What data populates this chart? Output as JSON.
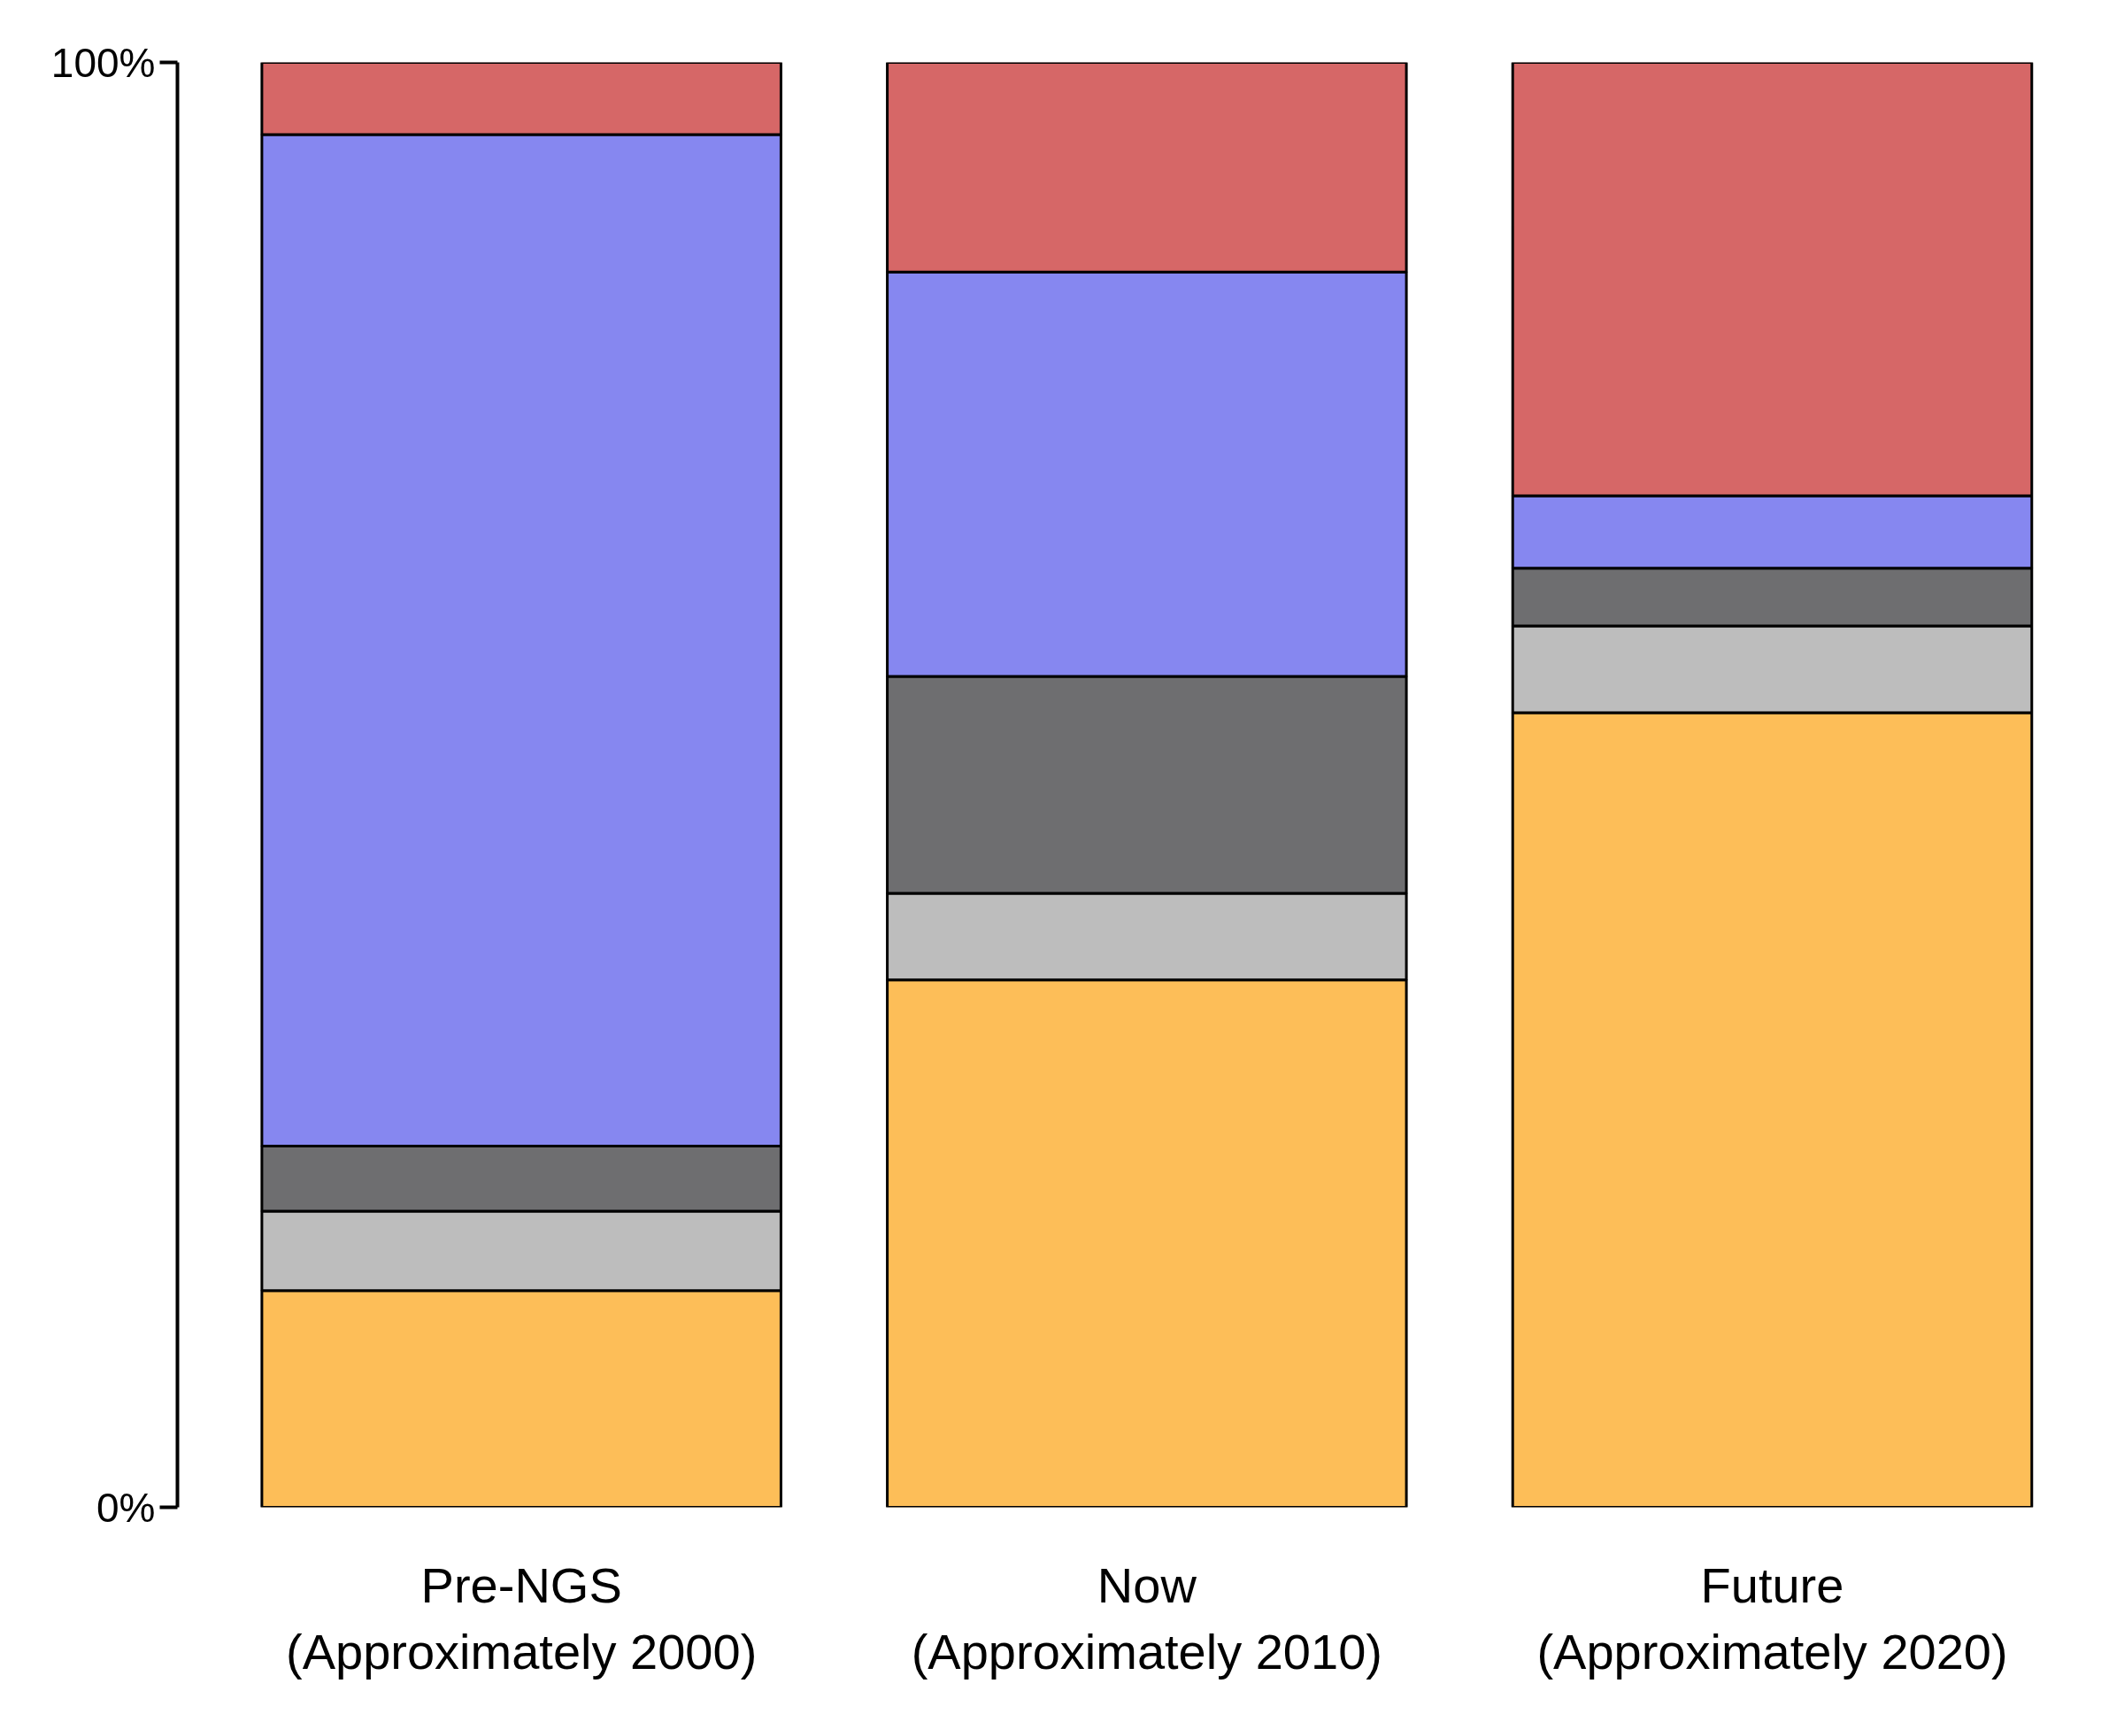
{
  "chart_data": {
    "type": "bar",
    "stacked": true,
    "categories": [
      "Pre-NGS\n(Approximately 2000)",
      "Now\n(Approximately 2010)",
      "Future\n(Approximately 2020)"
    ],
    "series": [
      {
        "color": "#fdbe58",
        "values": [
          15,
          36.5,
          55
        ]
      },
      {
        "color": "#bdbdbd",
        "values": [
          5.5,
          6,
          6
        ]
      },
      {
        "color": "#6e6e70",
        "values": [
          4.5,
          15,
          4
        ]
      },
      {
        "color": "#8687f0",
        "values": [
          70,
          28,
          5
        ]
      },
      {
        "color": "#d66767",
        "values": [
          5,
          14.5,
          30
        ]
      }
    ],
    "ylim": [
      0,
      100
    ],
    "yticks": [
      {
        "value": 0,
        "label": "0%"
      },
      {
        "value": 100,
        "label": "100%"
      }
    ]
  }
}
